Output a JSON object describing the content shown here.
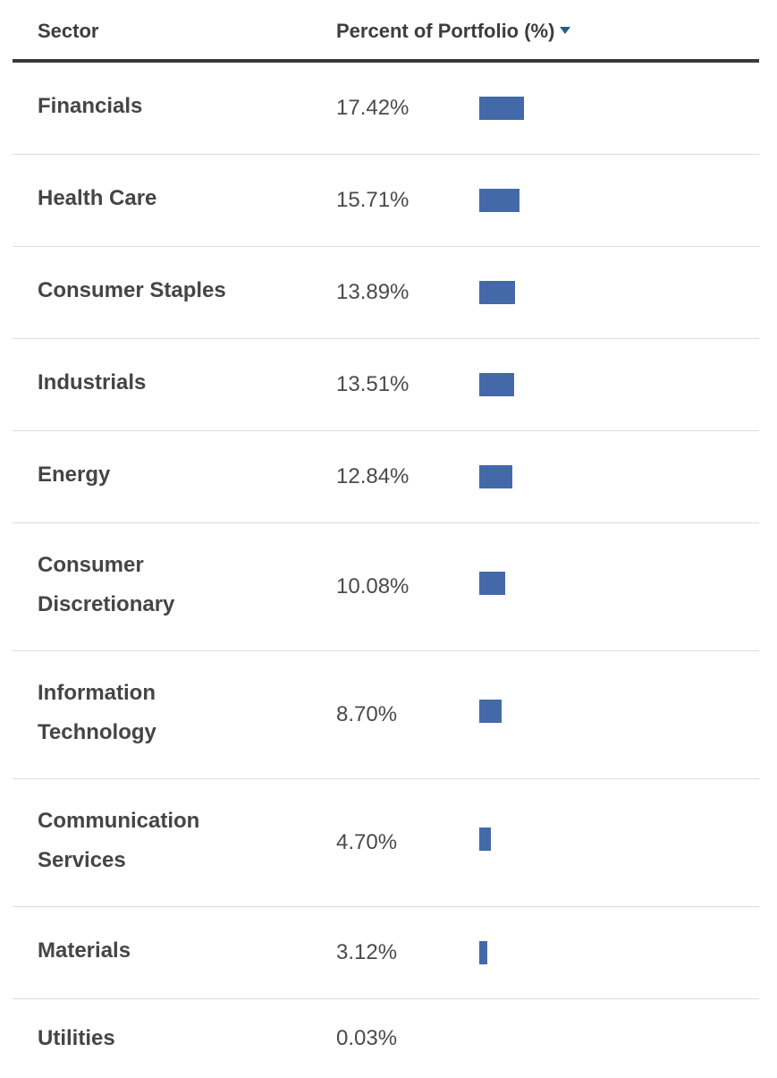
{
  "header": {
    "sector_label": "Sector",
    "percent_label": "Percent of Portfolio (%)",
    "sort_icon": "sort-descending-icon"
  },
  "colors": {
    "bar": "#4469a8",
    "sort_icon": "#1f5f8b"
  },
  "rows": [
    {
      "sector": "Financials",
      "percent": "17.42%"
    },
    {
      "sector": "Health Care",
      "percent": "15.71%"
    },
    {
      "sector": "Consumer Staples",
      "percent": "13.89%"
    },
    {
      "sector": "Industrials",
      "percent": "13.51%"
    },
    {
      "sector": "Energy",
      "percent": "12.84%"
    },
    {
      "sector": "Consumer Discretionary",
      "percent": "10.08%"
    },
    {
      "sector": "Information Technology",
      "percent": "8.70%"
    },
    {
      "sector": "Communication Services",
      "percent": "4.70%"
    },
    {
      "sector": "Materials",
      "percent": "3.12%"
    },
    {
      "sector": "Utilities",
      "percent": "0.03%"
    }
  ],
  "chart_data": {
    "type": "bar",
    "orientation": "horizontal",
    "title": "",
    "xlabel": "Percent of Portfolio (%)",
    "ylabel": "Sector",
    "categories": [
      "Financials",
      "Health Care",
      "Consumer Staples",
      "Industrials",
      "Energy",
      "Consumer Discretionary",
      "Information Technology",
      "Communication Services",
      "Materials",
      "Utilities"
    ],
    "values": [
      17.42,
      15.71,
      13.89,
      13.51,
      12.84,
      10.08,
      8.7,
      4.7,
      3.12,
      0.03
    ],
    "xlim": [
      0,
      100
    ],
    "grid": false,
    "legend": "none"
  }
}
